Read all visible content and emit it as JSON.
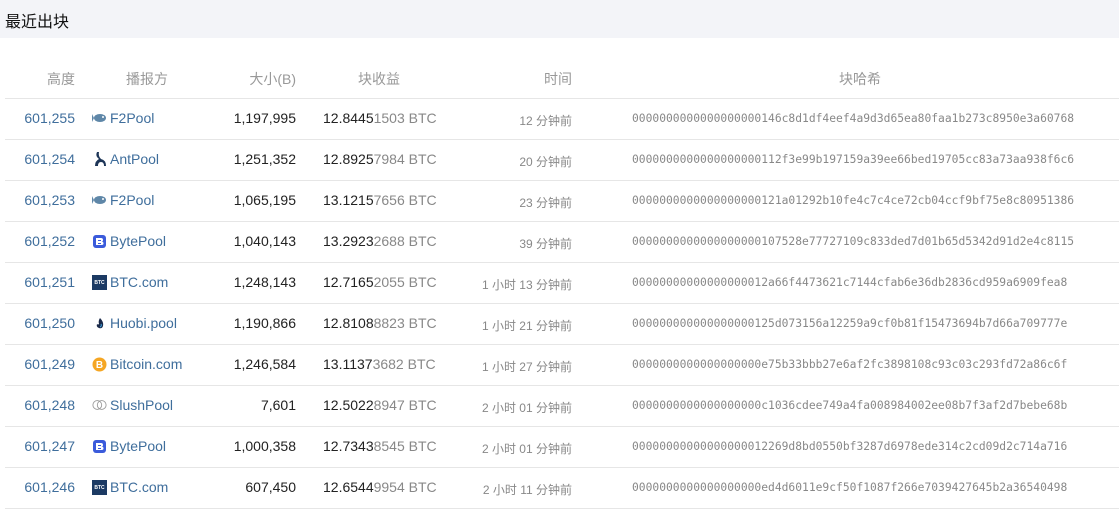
{
  "title": "最近出块",
  "headers": {
    "height": "高度",
    "pool": "播报方",
    "size": "大小(B)",
    "reward": "块收益",
    "time": "时间",
    "hash": "块哈希"
  },
  "colors": {
    "link": "#3f6e9c",
    "titlebar_bg": "#f3f4f8"
  },
  "rows": [
    {
      "height": "601,255",
      "pool": "F2Pool",
      "icon": "fish-icon",
      "size": "1,197,995",
      "reward_main": "12.8445",
      "reward_tail": "1503 BTC",
      "time": "12 分钟前",
      "hash": "0000000000000000000146c8d1df4eef4a9d3d65ea80faa1b273c8950e3a60768"
    },
    {
      "height": "601,254",
      "pool": "AntPool",
      "icon": "ant-icon",
      "size": "1,251,352",
      "reward_main": "12.8925",
      "reward_tail": "7984 BTC",
      "time": "20 分钟前",
      "hash": "0000000000000000000112f3e99b197159a39ee66bed19705cc83a73aa938f6c6"
    },
    {
      "height": "601,253",
      "pool": "F2Pool",
      "icon": "fish-icon",
      "size": "1,065,195",
      "reward_main": "13.1215",
      "reward_tail": "7656 BTC",
      "time": "23 分钟前",
      "hash": "0000000000000000000121a01292b10fe4c7c4ce72cb04ccf9bf75e8c80951386"
    },
    {
      "height": "601,252",
      "pool": "BytePool",
      "icon": "bytepool-icon",
      "size": "1,040,143",
      "reward_main": "13.2923",
      "reward_tail": "2688 BTC",
      "time": "39 分钟前",
      "hash": "0000000000000000000107528e77727109c833ded7d01b65d5342d91d2e4c8115"
    },
    {
      "height": "601,251",
      "pool": "BTC.com",
      "icon": "btccom-icon",
      "size": "1,248,143",
      "reward_main": "12.7165",
      "reward_tail": "2055 BTC",
      "time": "1 小时 13 分钟前",
      "hash": "00000000000000000012a66f4473621c7144cfab6e36db2836cd959a6909fea8"
    },
    {
      "height": "601,250",
      "pool": "Huobi.pool",
      "icon": "huobi-flame-icon",
      "size": "1,190,866",
      "reward_main": "12.8108",
      "reward_tail": "8823 BTC",
      "time": "1 小时 21 分钟前",
      "hash": "000000000000000000125d073156a12259a9cf0b81f15473694b7d66a709777e"
    },
    {
      "height": "601,249",
      "pool": "Bitcoin.com",
      "icon": "bitcoin-icon",
      "size": "1,246,584",
      "reward_main": "13.1137",
      "reward_tail": "3682 BTC",
      "time": "1 小时 27 分钟前",
      "hash": "0000000000000000000e75b33bbb27e6af2fc3898108c93c03c293fd72a86c6f"
    },
    {
      "height": "601,248",
      "pool": "SlushPool",
      "icon": "slushpool-icon",
      "size": "7,601",
      "reward_main": "12.5022",
      "reward_tail": "8947 BTC",
      "time": "2 小时 01 分钟前",
      "hash": "0000000000000000000c1036cdee749a4fa008984002ee08b7f3af2d7bebe68b"
    },
    {
      "height": "601,247",
      "pool": "BytePool",
      "icon": "bytepool-icon",
      "size": "1,000,358",
      "reward_main": "12.7343",
      "reward_tail": "8545 BTC",
      "time": "2 小时 01 分钟前",
      "hash": "00000000000000000012269d8bd0550bf3287d6978ede314c2cd09d2c714a716"
    },
    {
      "height": "601,246",
      "pool": "BTC.com",
      "icon": "btccom-icon",
      "size": "607,450",
      "reward_main": "12.6544",
      "reward_tail": "9954 BTC",
      "time": "2 小时 11 分钟前",
      "hash": "0000000000000000000ed4d6011e9cf50f1087f266e7039427645b2a36540498"
    }
  ]
}
